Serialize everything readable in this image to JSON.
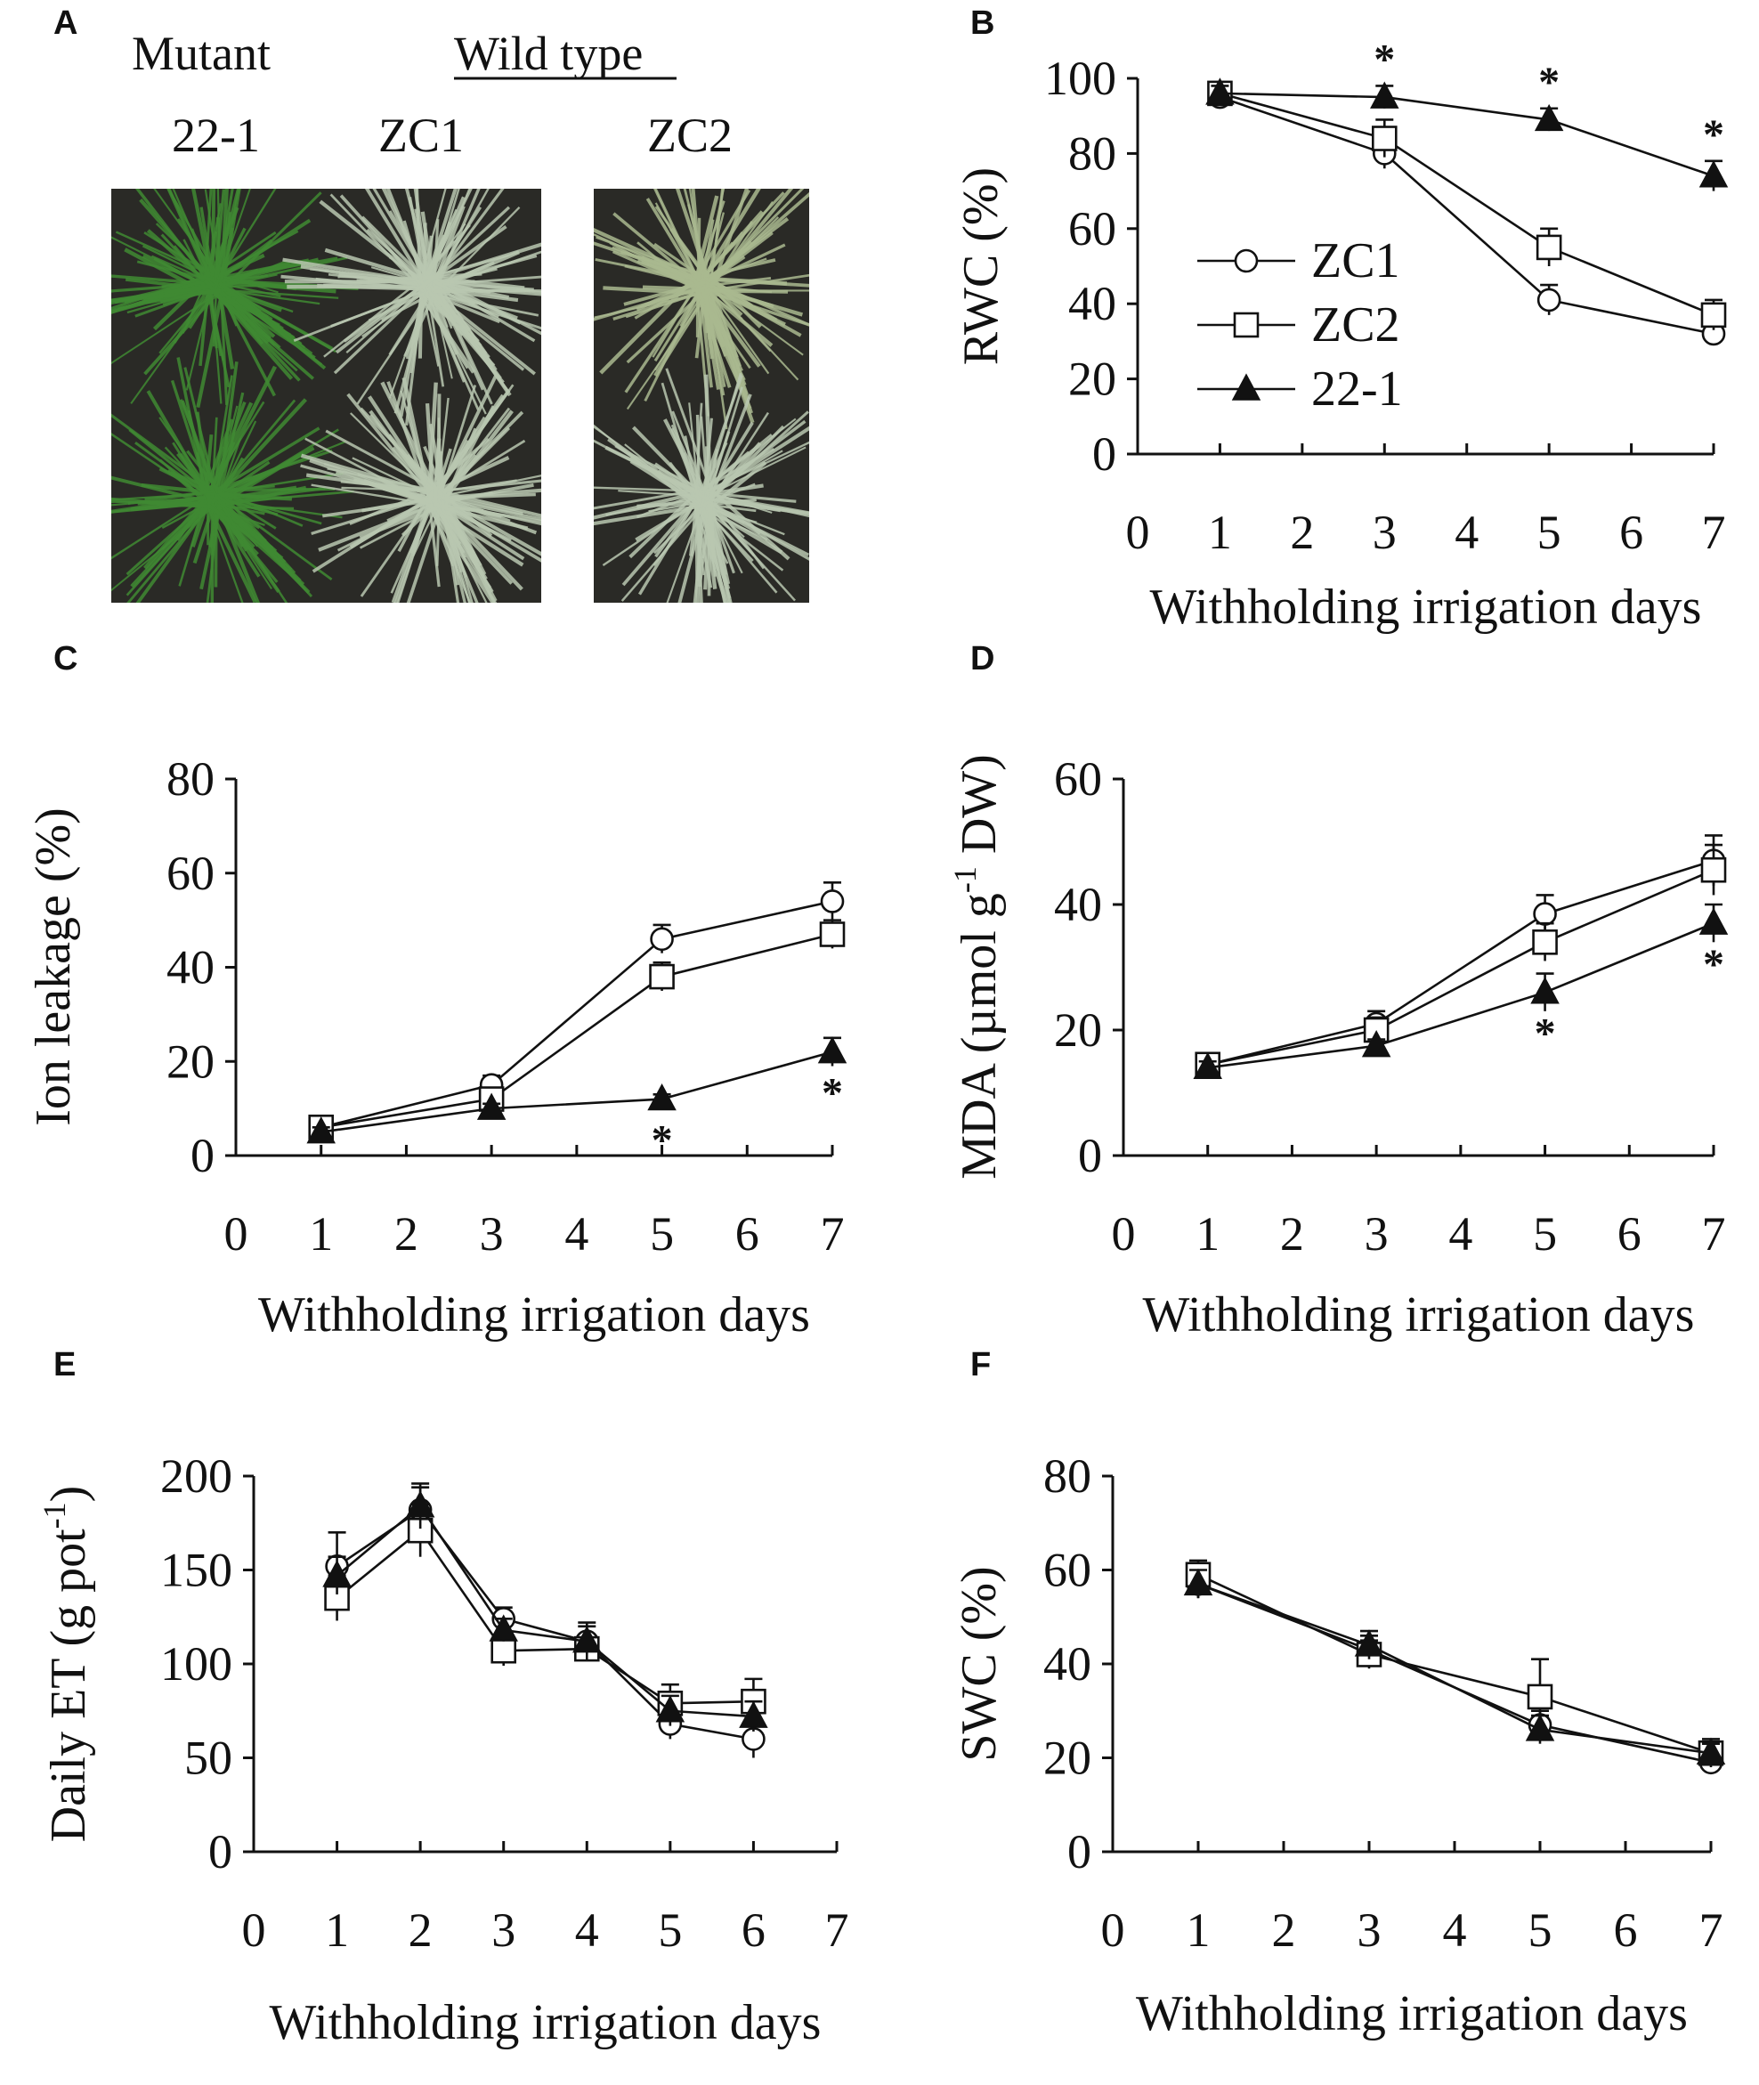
{
  "panel_a": {
    "label": "A",
    "header_mutant": "Mutant",
    "header_wild_type": "Wild type",
    "labels": [
      "22-1",
      "ZC1",
      "ZC2"
    ]
  },
  "colors": {
    "ink": "#111111",
    "grass_green": "#3f8a32",
    "grass_pale": "#b9c7b0",
    "soil": "#2a2a26"
  },
  "chart_data": [
    {
      "panel": "B",
      "type": "line",
      "title": "",
      "xlabel": "Withholding irrigation days",
      "ylabel": "RWC (%)",
      "xlim": [
        0,
        7
      ],
      "ylim": [
        0,
        100
      ],
      "xticks": [
        0,
        1,
        2,
        3,
        4,
        5,
        6,
        7
      ],
      "yticks": [
        0,
        20,
        40,
        60,
        80,
        100
      ],
      "legend": "center-left",
      "series": [
        {
          "name": "ZC1",
          "marker": "circle",
          "x": [
            1,
            3,
            5,
            7
          ],
          "y": [
            95,
            80,
            41,
            32
          ],
          "err": [
            3,
            4,
            4,
            3
          ]
        },
        {
          "name": "ZC2",
          "marker": "square",
          "x": [
            1,
            3,
            5,
            7
          ],
          "y": [
            96,
            84,
            55,
            37
          ],
          "err": [
            3,
            5,
            5,
            4
          ]
        },
        {
          "name": "22-1",
          "marker": "triangle",
          "x": [
            1,
            3,
            5,
            7
          ],
          "y": [
            96,
            95,
            89,
            74
          ],
          "err": [
            2,
            3,
            3,
            4
          ]
        }
      ],
      "annotations": [
        {
          "text": "*",
          "x": 3
        },
        {
          "text": "*",
          "x": 5
        },
        {
          "text": "*",
          "x": 7
        }
      ]
    },
    {
      "panel": "C",
      "type": "line",
      "title": "",
      "xlabel": "Withholding irrigation days",
      "ylabel": "Ion leakage (%)",
      "xlim": [
        0,
        7
      ],
      "ylim": [
        0,
        80
      ],
      "xticks": [
        0,
        1,
        2,
        3,
        4,
        5,
        6,
        7
      ],
      "yticks": [
        0,
        20,
        40,
        60,
        80
      ],
      "series": [
        {
          "name": "ZC1",
          "marker": "circle",
          "x": [
            1,
            3,
            5,
            7
          ],
          "y": [
            6,
            15,
            46,
            54
          ],
          "err": [
            1,
            2,
            3,
            4
          ]
        },
        {
          "name": "ZC2",
          "marker": "square",
          "x": [
            1,
            3,
            5,
            7
          ],
          "y": [
            6,
            12,
            38,
            47
          ],
          "err": [
            1,
            2,
            3,
            3
          ]
        },
        {
          "name": "22-1",
          "marker": "triangle",
          "x": [
            1,
            3,
            5,
            7
          ],
          "y": [
            5,
            10,
            12,
            22
          ],
          "err": [
            1,
            1,
            1,
            3
          ]
        }
      ],
      "annotations": [
        {
          "text": "*",
          "x": 5
        },
        {
          "text": "*",
          "x": 7
        }
      ]
    },
    {
      "panel": "D",
      "type": "line",
      "title": "",
      "xlabel": "Withholding irrigation days",
      "ylabel": "MDA (µmol g DW)",
      "ylabel_superscript": "-1",
      "xlim": [
        0,
        7
      ],
      "ylim": [
        0,
        60
      ],
      "xticks": [
        0,
        1,
        2,
        3,
        4,
        5,
        6,
        7
      ],
      "yticks": [
        0,
        20,
        40,
        60
      ],
      "series": [
        {
          "name": "ZC1",
          "marker": "circle",
          "x": [
            1,
            3,
            5,
            7
          ],
          "y": [
            14.5,
            21,
            38.5,
            47
          ],
          "err": [
            1,
            2,
            3,
            4
          ]
        },
        {
          "name": "ZC2",
          "marker": "square",
          "x": [
            1,
            3,
            5,
            7
          ],
          "y": [
            14.5,
            20,
            34,
            45.5
          ],
          "err": [
            1,
            2,
            3,
            4
          ]
        },
        {
          "name": "22-1",
          "marker": "triangle",
          "x": [
            1,
            3,
            5,
            7
          ],
          "y": [
            14,
            17.5,
            26,
            37
          ],
          "err": [
            1,
            1,
            3,
            3
          ]
        }
      ],
      "annotations": [
        {
          "text": "*",
          "x": 5
        },
        {
          "text": "*",
          "x": 7
        }
      ]
    },
    {
      "panel": "E",
      "type": "line",
      "title": "",
      "xlabel": "Withholding irrigation days",
      "ylabel": "Daily ET (g pot )",
      "ylabel_superscript": "-1",
      "xlim": [
        0,
        7
      ],
      "ylim": [
        0,
        200
      ],
      "xticks": [
        0,
        1,
        2,
        3,
        4,
        5,
        6,
        7
      ],
      "yticks": [
        0,
        50,
        100,
        150,
        200
      ],
      "series": [
        {
          "name": "ZC1",
          "marker": "circle",
          "x": [
            1,
            2,
            3,
            4,
            5,
            6
          ],
          "y": [
            152,
            182,
            124,
            112,
            68,
            60
          ],
          "err": [
            18,
            12,
            6,
            8,
            8,
            10
          ]
        },
        {
          "name": "ZC2",
          "marker": "square",
          "x": [
            1,
            2,
            3,
            4,
            5,
            6
          ],
          "y": [
            135,
            171,
            107,
            108,
            79,
            80
          ],
          "err": [
            12,
            14,
            8,
            6,
            10,
            12
          ]
        },
        {
          "name": "22-1",
          "marker": "triangle",
          "x": [
            1,
            2,
            3,
            4,
            5,
            6
          ],
          "y": [
            147,
            184,
            118,
            112,
            75,
            72
          ],
          "err": [
            10,
            12,
            6,
            10,
            8,
            8
          ]
        }
      ],
      "annotations": []
    },
    {
      "panel": "F",
      "type": "line",
      "title": "",
      "xlabel": "Withholding irrigation days",
      "ylabel": "SWC (%)",
      "xlim": [
        0,
        7
      ],
      "ylim": [
        0,
        80
      ],
      "xticks": [
        0,
        1,
        2,
        3,
        4,
        5,
        6,
        7
      ],
      "yticks": [
        0,
        20,
        40,
        60,
        80
      ],
      "series": [
        {
          "name": "ZC1",
          "marker": "circle",
          "x": [
            1,
            3,
            5,
            7
          ],
          "y": [
            57,
            43,
            27,
            19
          ],
          "err": [
            3,
            3,
            3,
            2
          ]
        },
        {
          "name": "ZC2",
          "marker": "square",
          "x": [
            1,
            3,
            5,
            7
          ],
          "y": [
            59,
            42,
            33,
            21
          ],
          "err": [
            3,
            3,
            8,
            3
          ]
        },
        {
          "name": "22-1",
          "marker": "triangle",
          "x": [
            1,
            3,
            5,
            7
          ],
          "y": [
            57,
            44,
            26,
            21
          ],
          "err": [
            3,
            3,
            3,
            2
          ]
        }
      ],
      "annotations": []
    }
  ]
}
